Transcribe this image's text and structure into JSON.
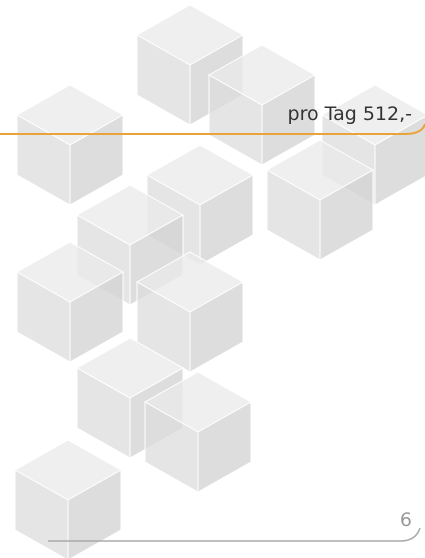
{
  "price_label": "pro Tag 512,-",
  "page_number": "6"
}
